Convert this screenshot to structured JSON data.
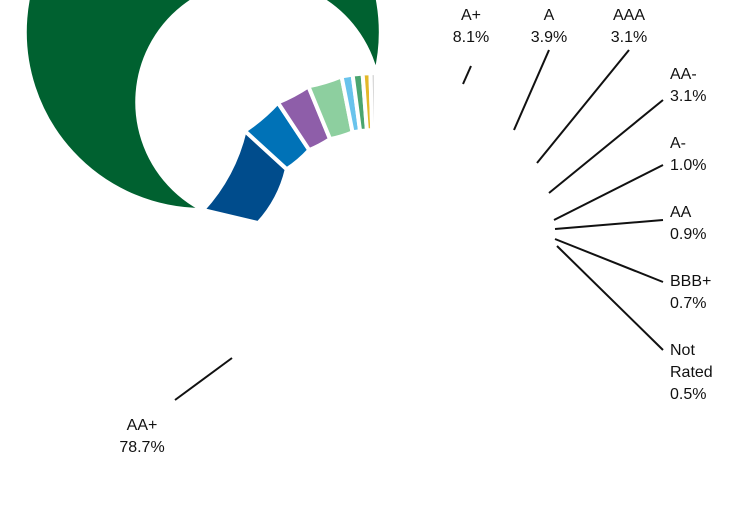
{
  "chart_data": {
    "type": "pie",
    "style": "donut",
    "title": "",
    "series": [
      {
        "labels": [
          "AA+",
          "A+",
          "A",
          "AAA",
          "AA-",
          "A-",
          "AA",
          "BBB+",
          "Not Rated"
        ],
        "values": [
          78.7,
          8.1,
          3.9,
          3.1,
          3.1,
          1.0,
          0.9,
          0.7,
          0.5
        ],
        "value_labels": [
          "78.7%",
          "8.1%",
          "3.9%",
          "3.1%",
          "3.1%",
          "1.0%",
          "0.9%",
          "0.7%",
          "0.5%"
        ],
        "colors": [
          "#006130",
          "#004C8C",
          "#0072B7",
          "#8E5EA9",
          "#8DCF9F",
          "#69C3EC",
          "#4AA56F",
          "#E3B829",
          "#D9D9D9"
        ]
      }
    ],
    "legend": "none",
    "label_placement": "outside with leader lines"
  }
}
